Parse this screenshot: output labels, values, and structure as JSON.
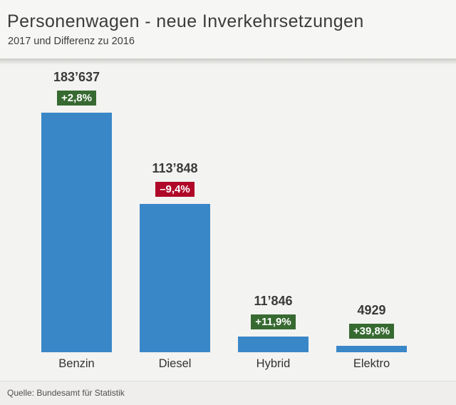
{
  "header": {
    "title": "Personenwagen - neue Inverkehrsetzungen",
    "subtitle": "2017 und Differenz zu 2016"
  },
  "footer": {
    "source": "Quelle: Bundesamt für Statistik"
  },
  "colors": {
    "bar": "#3a87c8",
    "badge_positive": "#376a31",
    "badge_negative": "#b00828",
    "value_text": "#3a3a3a",
    "background": "#f3f3f1"
  },
  "chart_data": {
    "type": "bar",
    "title": "Personenwagen - neue Inverkehrsetzungen",
    "subtitle": "2017 und Differenz zu 2016",
    "categories": [
      "Benzin",
      "Diesel",
      "Hybrid",
      "Elektro"
    ],
    "values": [
      183637,
      113848,
      11846,
      4929
    ],
    "value_labels": [
      "183’637",
      "113’848",
      "11’846",
      "4929"
    ],
    "changes": [
      "+2,8%",
      "–9,4%",
      "+11,9%",
      "+39,8%"
    ],
    "change_directions": [
      "up",
      "down",
      "up",
      "up"
    ],
    "ylim": [
      0,
      183637
    ],
    "grid": false,
    "legend": false,
    "source": "Quelle: Bundesamt für Statistik"
  }
}
